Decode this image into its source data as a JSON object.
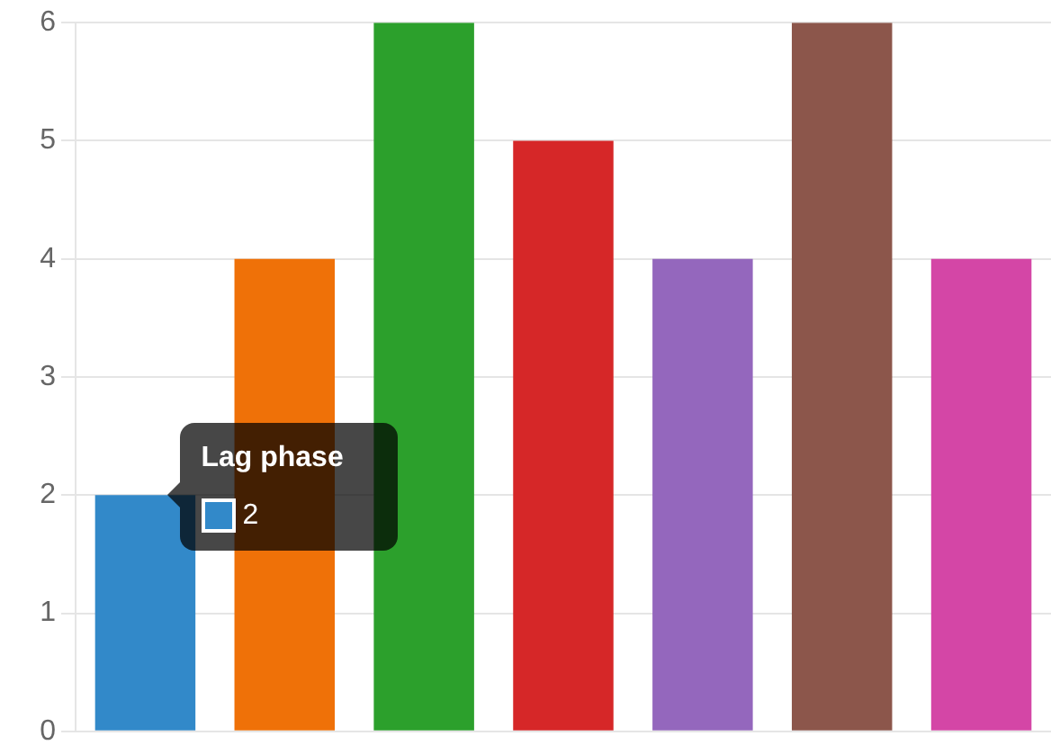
{
  "chart_data": {
    "type": "bar",
    "categories": [
      null,
      null,
      null,
      null,
      null,
      null,
      null
    ],
    "values": [
      2,
      4,
      6,
      5,
      4,
      6,
      4
    ],
    "colors": [
      "#3289c9",
      "#ef7108",
      "#2ca02c",
      "#d62728",
      "#9467bd",
      "#8c564b",
      "#d446a6"
    ],
    "annotations": [
      "Lag phase",
      "2"
    ],
    "ylim": [
      0,
      6
    ],
    "yticks": [
      0,
      1,
      2,
      3,
      4,
      5,
      6
    ],
    "grid": "y",
    "legend": false
  }
}
